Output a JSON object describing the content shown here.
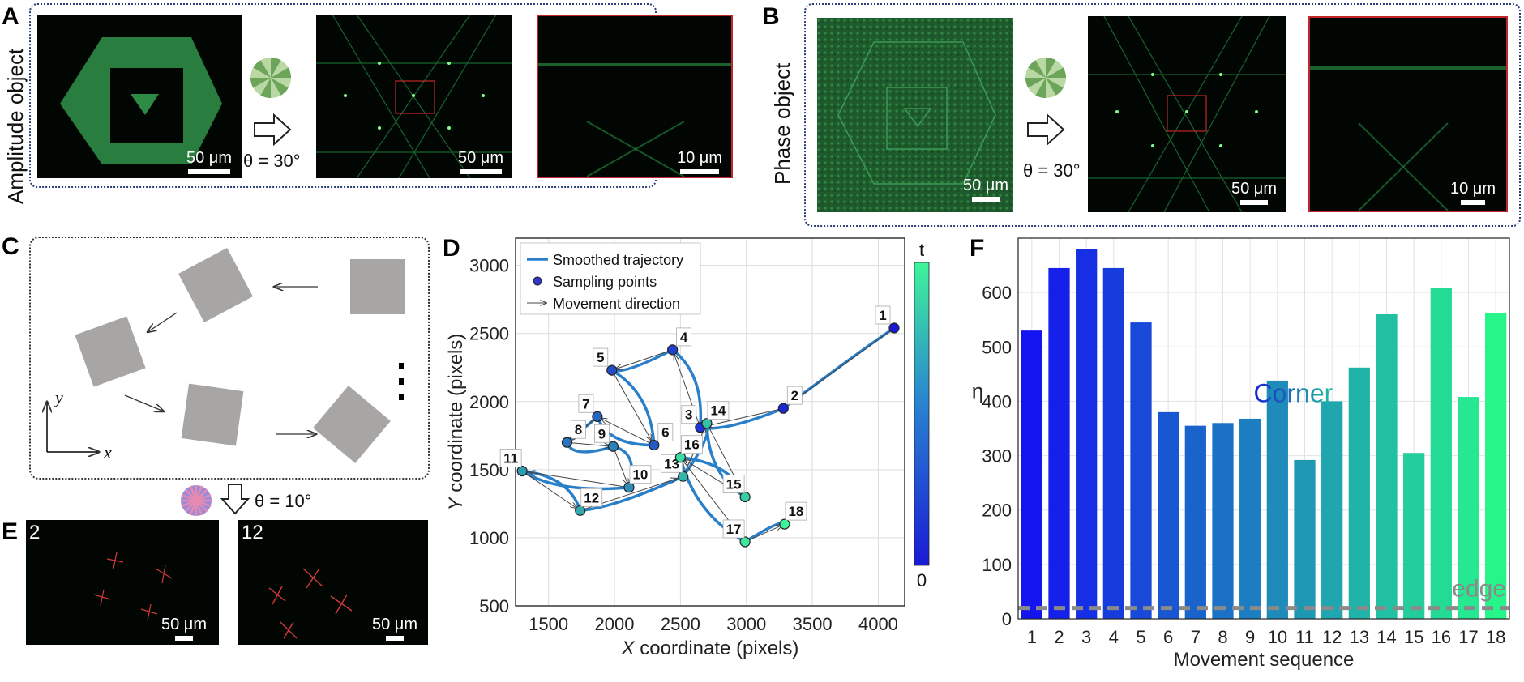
{
  "panels": {
    "A": {
      "letter": "A",
      "side_label": "Amplitude object",
      "theta": "θ = 30°",
      "scales": [
        "50 μm",
        "50 μm",
        "10 μm"
      ]
    },
    "B": {
      "letter": "B",
      "side_label": "Phase object",
      "theta": "θ = 30°",
      "scales": [
        "50 μm",
        "50 μm",
        "10 μm"
      ]
    },
    "C": {
      "letter": "C",
      "axis_x": "x",
      "axis_y": "y",
      "theta": "θ = 10°"
    },
    "E": {
      "letter": "E",
      "frames": [
        {
          "label": "2",
          "scale": "50 μm"
        },
        {
          "label": "12",
          "scale": "50 μm"
        }
      ]
    },
    "D": {
      "letter": "D"
    },
    "F": {
      "letter": "F"
    }
  },
  "colors": {
    "green_object": "#2e8b45",
    "box_red": "#c0262a",
    "trajectory": "#2a7fc9",
    "frame_border": "#2a3f7a"
  },
  "chart_data": [
    {
      "type": "line",
      "panel": "D",
      "xlabel_prefix": "X",
      "xlabel": " coordinate (pixels)",
      "ylabel_prefix": "Y",
      "ylabel": " coordinate (pixels)",
      "xlim": [
        1250,
        4200
      ],
      "ylim": [
        500,
        3200
      ],
      "xticks": [
        1500,
        2000,
        2500,
        3000,
        3500,
        4000
      ],
      "yticks": [
        500,
        1000,
        1500,
        2000,
        2500,
        3000
      ],
      "grid": true,
      "legend": [
        "Smoothed trajectory",
        "Sampling points",
        "Movement direction"
      ],
      "colorbar": {
        "top_label": "t",
        "bottom_label": "0"
      },
      "points": [
        {
          "n": "1",
          "x": 4120,
          "y": 2540
        },
        {
          "n": "2",
          "x": 3280,
          "y": 1950
        },
        {
          "n": "3",
          "x": 2650,
          "y": 1810
        },
        {
          "n": "4",
          "x": 2440,
          "y": 2380
        },
        {
          "n": "5",
          "x": 1980,
          "y": 2230
        },
        {
          "n": "6",
          "x": 2300,
          "y": 1680
        },
        {
          "n": "7",
          "x": 1870,
          "y": 1890
        },
        {
          "n": "8",
          "x": 1640,
          "y": 1700
        },
        {
          "n": "9",
          "x": 1990,
          "y": 1670
        },
        {
          "n": "10",
          "x": 2110,
          "y": 1370
        },
        {
          "n": "11",
          "x": 1300,
          "y": 1490
        },
        {
          "n": "12",
          "x": 1740,
          "y": 1200
        },
        {
          "n": "13",
          "x": 2520,
          "y": 1450
        },
        {
          "n": "14",
          "x": 2700,
          "y": 1840
        },
        {
          "n": "15",
          "x": 2990,
          "y": 1300
        },
        {
          "n": "16",
          "x": 2500,
          "y": 1590
        },
        {
          "n": "17",
          "x": 2990,
          "y": 970
        },
        {
          "n": "18",
          "x": 3290,
          "y": 1100
        }
      ]
    },
    {
      "type": "bar",
      "panel": "F",
      "categories": [
        "1",
        "2",
        "3",
        "4",
        "5",
        "6",
        "7",
        "8",
        "9",
        "10",
        "11",
        "12",
        "13",
        "14",
        "15",
        "16",
        "17",
        "18"
      ],
      "values": [
        530,
        645,
        680,
        645,
        545,
        380,
        355,
        360,
        368,
        438,
        292,
        400,
        462,
        560,
        305,
        608,
        408,
        562
      ],
      "xlabel": "Movement sequence",
      "ylabel": "η",
      "ylim": [
        0,
        700
      ],
      "yticks": [
        0,
        100,
        200,
        300,
        400,
        500,
        600
      ],
      "annotation": "Corner",
      "reference": {
        "label": "edge",
        "value": 20
      }
    }
  ]
}
